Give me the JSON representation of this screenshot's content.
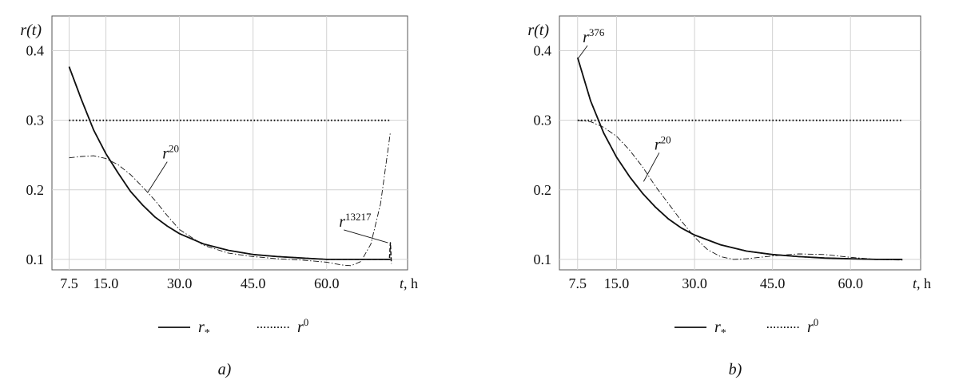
{
  "chart_data": [
    {
      "type": "line",
      "caption": "a)",
      "ylabel": "r(t)",
      "xlabel_var": "t",
      "xlabel_unit": ", h",
      "xticks": [
        7.5,
        15.0,
        30.0,
        45.0,
        60.0
      ],
      "xtick_labels": [
        "7.5",
        "15.0",
        "30.0",
        "45.0",
        "60.0"
      ],
      "yticks": [
        0.1,
        0.2,
        0.3,
        0.4
      ],
      "ytick_labels": [
        "0.1",
        "0.2",
        "0.3",
        "0.4"
      ],
      "xlim": [
        4.0,
        76.5
      ],
      "ylim": [
        0.085,
        0.45
      ],
      "grid": true,
      "legend_position": "bottom-center",
      "series": [
        {
          "name": "r_*",
          "style": "solid",
          "x": [
            7.5,
            10,
            12.5,
            15,
            17.5,
            20,
            22.5,
            25,
            27.5,
            30,
            35,
            40,
            45,
            50,
            55,
            60,
            65,
            70,
            73
          ],
          "y": [
            0.377,
            0.33,
            0.286,
            0.252,
            0.224,
            0.198,
            0.178,
            0.161,
            0.148,
            0.137,
            0.122,
            0.113,
            0.107,
            0.104,
            0.102,
            0.1,
            0.1,
            0.1,
            0.1
          ]
        },
        {
          "name": "r^0",
          "style": "dotted",
          "x": [
            7.5,
            73
          ],
          "y": [
            0.3,
            0.3
          ]
        },
        {
          "name": "r^20",
          "style": "dashdot",
          "x": [
            7.5,
            10,
            12.5,
            15,
            17.5,
            20,
            22.5,
            25,
            27.5,
            30,
            35,
            40,
            45,
            50,
            55,
            60,
            63,
            65,
            67,
            69,
            71,
            73
          ],
          "y": [
            0.246,
            0.248,
            0.249,
            0.245,
            0.236,
            0.222,
            0.204,
            0.185,
            0.163,
            0.143,
            0.12,
            0.109,
            0.104,
            0.101,
            0.099,
            0.096,
            0.092,
            0.091,
            0.097,
            0.122,
            0.18,
            0.283
          ]
        },
        {
          "name": "r^13217",
          "style": "dashed",
          "x": [
            7.5,
            10,
            12.5,
            15,
            17.5,
            20,
            22.5,
            25,
            27.5,
            30,
            35,
            40,
            45,
            50,
            55,
            60,
            65,
            70,
            72.8,
            73,
            73.2
          ],
          "y": [
            0.377,
            0.33,
            0.286,
            0.252,
            0.224,
            0.198,
            0.178,
            0.161,
            0.148,
            0.137,
            0.122,
            0.113,
            0.107,
            0.104,
            0.102,
            0.1,
            0.1,
            0.1,
            0.1,
            0.124,
            0.094
          ]
        }
      ],
      "annotations": [
        {
          "text": "r",
          "sup": "20",
          "x": 27.5,
          "y": 0.245,
          "points_to": [
            23.5,
            0.196
          ]
        },
        {
          "text": "r",
          "sup": "13217",
          "x": 63.5,
          "y": 0.147,
          "points_to": [
            72.5,
            0.124
          ]
        }
      ],
      "legend": [
        {
          "label": "r",
          "sub": "*",
          "style": "solid"
        },
        {
          "label": "r",
          "sup": "0",
          "style": "dotted"
        }
      ]
    },
    {
      "type": "line",
      "caption": "b)",
      "ylabel": "r(t)",
      "xlabel_var": "t",
      "xlabel_unit": ", h",
      "xticks": [
        7.5,
        15.0,
        30.0,
        45.0,
        60.0
      ],
      "xtick_labels": [
        "7.5",
        "15.0",
        "30.0",
        "45.0",
        "60.0"
      ],
      "yticks": [
        0.1,
        0.2,
        0.3,
        0.4
      ],
      "ytick_labels": [
        "0.1",
        "0.2",
        "0.3",
        "0.4"
      ],
      "xlim": [
        4.0,
        73.5
      ],
      "ylim": [
        0.085,
        0.45
      ],
      "grid": true,
      "legend_position": "bottom-center",
      "series": [
        {
          "name": "r_*",
          "style": "solid",
          "x": [
            7.5,
            10,
            12.5,
            15,
            17.5,
            20,
            22.5,
            25,
            27.5,
            30,
            35,
            40,
            45,
            50,
            55,
            60,
            65,
            70
          ],
          "y": [
            0.39,
            0.328,
            0.282,
            0.247,
            0.219,
            0.195,
            0.175,
            0.158,
            0.145,
            0.135,
            0.121,
            0.112,
            0.107,
            0.104,
            0.102,
            0.101,
            0.1,
            0.1
          ]
        },
        {
          "name": "r^0",
          "style": "dotted",
          "x": [
            7.5,
            70
          ],
          "y": [
            0.3,
            0.3
          ]
        },
        {
          "name": "r^20",
          "style": "dashdot",
          "x": [
            7.5,
            10,
            12.5,
            15,
            17.5,
            20,
            22.5,
            25,
            27.5,
            30,
            32.5,
            35,
            37.5,
            40,
            45,
            50,
            55,
            60,
            65,
            70
          ],
          "y": [
            0.3,
            0.298,
            0.29,
            0.277,
            0.257,
            0.233,
            0.205,
            0.18,
            0.155,
            0.132,
            0.114,
            0.104,
            0.1,
            0.101,
            0.105,
            0.108,
            0.107,
            0.103,
            0.1,
            0.099
          ]
        },
        {
          "name": "r^376",
          "style": "dashed",
          "x": [
            7.5,
            10,
            12.5,
            15,
            17.5,
            20,
            22.5,
            25,
            27.5,
            30,
            35,
            40,
            45,
            50,
            55,
            60,
            65,
            70
          ],
          "y": [
            0.39,
            0.328,
            0.282,
            0.247,
            0.219,
            0.195,
            0.175,
            0.158,
            0.145,
            0.135,
            0.121,
            0.112,
            0.107,
            0.104,
            0.102,
            0.101,
            0.1,
            0.1
          ]
        }
      ],
      "annotations": [
        {
          "text": "r",
          "sup": "376",
          "x": 9.4,
          "y": 0.412,
          "points_to": [
            7.6,
            0.389
          ]
        },
        {
          "text": "r",
          "sup": "20",
          "x": 23.2,
          "y": 0.258,
          "points_to": [
            20.2,
            0.212
          ]
        }
      ],
      "legend": [
        {
          "label": "r",
          "sub": "*",
          "style": "solid"
        },
        {
          "label": "r",
          "sup": "0",
          "style": "dotted"
        }
      ]
    }
  ]
}
